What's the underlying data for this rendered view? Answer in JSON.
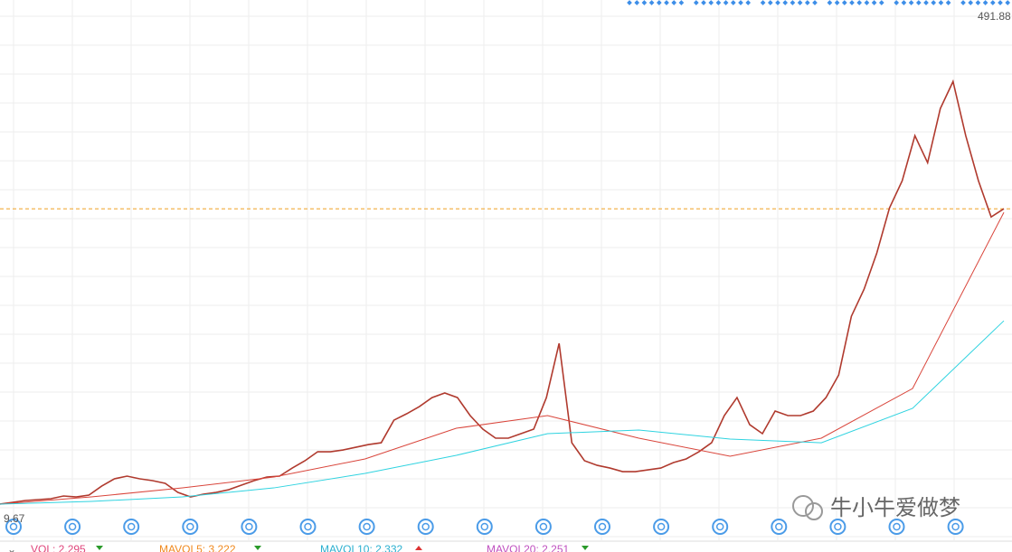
{
  "chart_data": {
    "type": "line",
    "ylim": [
      0,
      520
    ],
    "high_label": 491.88,
    "low_label": 9.67,
    "current_price": 311,
    "series": [
      {
        "name": "close",
        "color": "#b03a2e",
        "values": [
          15.4,
          17.2,
          19.0,
          19.9,
          20.8,
          23.5,
          22.6,
          24.4,
          33.4,
          40.7,
          43.4,
          40.7,
          38.9,
          36.2,
          27.1,
          22.6,
          25.3,
          27.1,
          29.8,
          34.4,
          38.9,
          42.5,
          43.4,
          51.5,
          58.8,
          67.8,
          67.8,
          69.6,
          72.3,
          75.0,
          76.8,
          99.4,
          105.8,
          113.0,
          122.0,
          126.6,
          122.0,
          104.0,
          90.4,
          81.4,
          81.4,
          85.9,
          90.4,
          122.0,
          176.3,
          76.8,
          58.8,
          54.2,
          51.5,
          47.9,
          47.9,
          49.7,
          51.5,
          57.0,
          60.6,
          67.8,
          76.8,
          104.0,
          122.0,
          94.9,
          85.9,
          108.5,
          104.0,
          104.0,
          108.5,
          122.0,
          144.6,
          203.4,
          230.5,
          266.7,
          311.9,
          339.0,
          384.2,
          357.1,
          411.3,
          438.4,
          384.2,
          339.0,
          302.8,
          311.0
        ]
      },
      {
        "name": "ma-long",
        "color": "#d9453b",
        "values": [
          15.4,
          22.6,
          31.6,
          42.5,
          60.6,
          91.3,
          104.0,
          81.4,
          63.3,
          81.4,
          131.1,
          307.4
        ]
      },
      {
        "name": "ma-extra-long",
        "color": "#2fd3e0",
        "values": [
          15.4,
          18.1,
          22.6,
          31.6,
          46.1,
          64.2,
          85.9,
          89.5,
          80.5,
          76.8,
          111.3,
          198.9
        ]
      }
    ]
  },
  "watermark": "牛小牛爱做梦",
  "legend": [
    "VOL: 2.295",
    "MAVOL5: 3.222",
    "MAVOL10: 2.332",
    "MAVOL20: 2.251"
  ]
}
